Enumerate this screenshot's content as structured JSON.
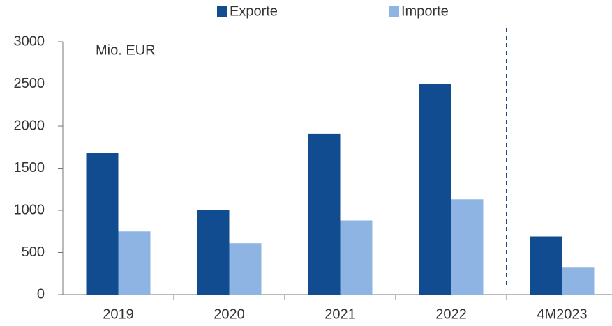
{
  "chart_data": {
    "type": "bar",
    "annotation": "Mio. EUR",
    "categories": [
      "2019",
      "2020",
      "2021",
      "2022",
      "4M2023"
    ],
    "series": [
      {
        "name": "Exporte",
        "color": "#104c8f",
        "values": [
          1680,
          1000,
          1910,
          2500,
          690
        ]
      },
      {
        "name": "Importe",
        "color": "#8db4e2",
        "values": [
          750,
          610,
          880,
          1130,
          320
        ]
      }
    ],
    "ylim": [
      0,
      3000
    ],
    "yticks": [
      0,
      500,
      1000,
      1500,
      2000,
      2500,
      3000
    ],
    "legend": "top",
    "grid": false
  }
}
